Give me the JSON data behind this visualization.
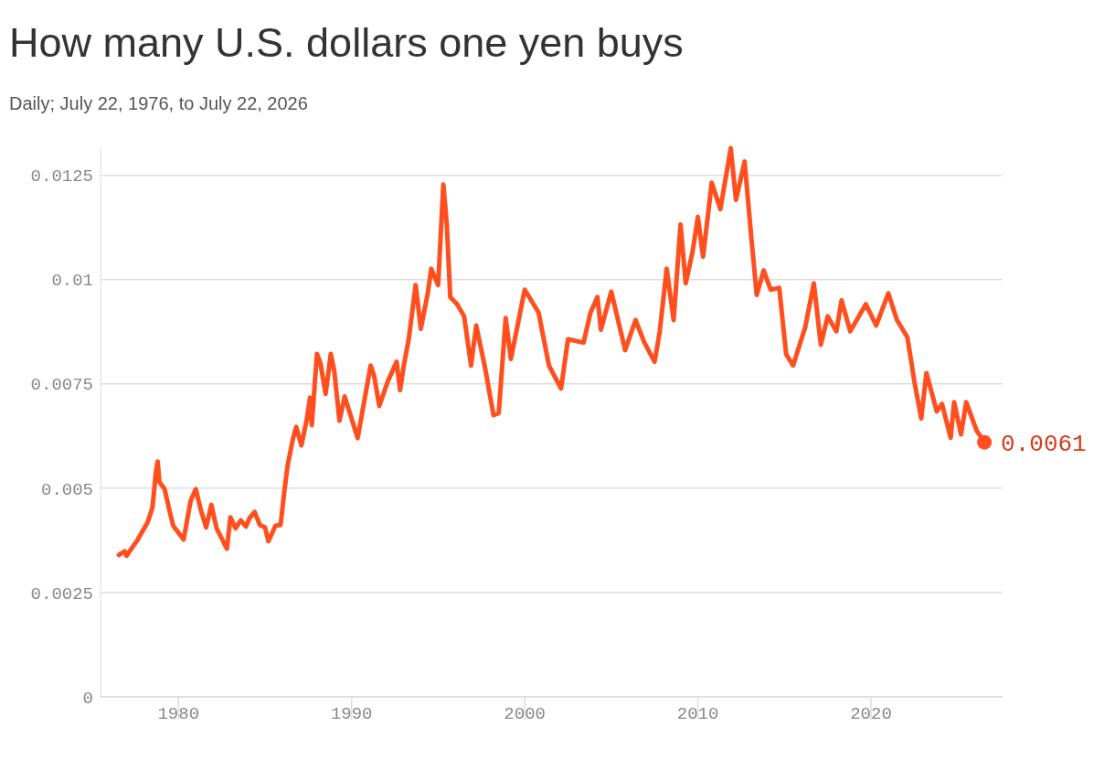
{
  "chart_data": {
    "type": "line",
    "title": "How many U.S. dollars one yen buys",
    "subtitle": "Daily; July 22, 1976, to July 22, 2026",
    "series": [
      {
        "color": "#ff4f1f",
        "x": [
          1976.56,
          1976.9,
          1977.0,
          1977.4,
          1977.6,
          1977.8,
          1978.2,
          1978.3,
          1978.5,
          1978.7,
          1978.8,
          1978.9,
          1979.2,
          1979.5,
          1979.7,
          1980.3,
          1980.7,
          1981.0,
          1981.3,
          1981.6,
          1981.9,
          1982.2,
          1982.8,
          1983.0,
          1983.3,
          1983.6,
          1983.9,
          1984.1,
          1984.4,
          1984.7,
          1985.0,
          1985.2,
          1985.6,
          1985.9,
          1986.1,
          1986.3,
          1986.6,
          1986.8,
          1987.1,
          1987.4,
          1987.6,
          1987.7,
          1988.0,
          1988.2,
          1988.5,
          1988.8,
          1989.0,
          1989.3,
          1989.6,
          1990.35,
          1991.1,
          1991.3,
          1991.6,
          1992.1,
          1992.6,
          1992.8,
          1993.0,
          1993.3,
          1993.7,
          1994.0,
          1994.4,
          1994.6,
          1995.0,
          1995.3,
          1995.5,
          1995.7,
          1996.1,
          1996.5,
          1996.9,
          1997.2,
          1997.7,
          1998.2,
          1998.5,
          1998.9,
          1999.2,
          2000.0,
          2000.8,
          2001.4,
          2002.1,
          2002.5,
          2003.4,
          2003.8,
          2004.2,
          2004.4,
          2005.0,
          2005.8,
          2006.4,
          2006.9,
          2007.5,
          2007.8,
          2008.2,
          2008.6,
          2009.0,
          2009.3,
          2009.7,
          2010.0,
          2010.3,
          2010.8,
          2011.3,
          2011.9,
          2012.2,
          2012.7,
          2013.1,
          2013.4,
          2013.8,
          2014.2,
          2014.7,
          2015.1,
          2015.5,
          2016.2,
          2016.7,
          2017.1,
          2017.5,
          2018.0,
          2018.3,
          2018.8,
          2019.7,
          2020.3,
          2021.0,
          2021.5,
          2022.1,
          2022.5,
          2022.9,
          2023.2,
          2023.8,
          2024.1,
          2024.6,
          2024.8,
          2025.2,
          2025.5,
          2026.1,
          2026.55
        ],
        "values": [
          0.0034,
          0.00349,
          0.00338,
          0.00362,
          0.00373,
          0.00388,
          0.00417,
          0.00428,
          0.00454,
          0.00539,
          0.00564,
          0.00515,
          0.00498,
          0.00443,
          0.0041,
          0.00377,
          0.00469,
          0.00498,
          0.00447,
          0.00406,
          0.0046,
          0.00404,
          0.00355,
          0.0043,
          0.00404,
          0.00423,
          0.00408,
          0.00428,
          0.00443,
          0.00412,
          0.00406,
          0.00373,
          0.0041,
          0.00412,
          0.00487,
          0.00553,
          0.00616,
          0.00647,
          0.00603,
          0.00662,
          0.00717,
          0.00651,
          0.00822,
          0.008,
          0.00726,
          0.00822,
          0.00781,
          0.00662,
          0.0072,
          0.0062,
          0.00794,
          0.0077,
          0.00697,
          0.00757,
          0.00803,
          0.00735,
          0.0079,
          0.00857,
          0.00987,
          0.00882,
          0.00967,
          0.01026,
          0.00987,
          0.01228,
          0.01132,
          0.00958,
          0.00941,
          0.00912,
          0.00794,
          0.0089,
          0.0079,
          0.00675,
          0.0068,
          0.00908,
          0.0081,
          0.00976,
          0.00921,
          0.00794,
          0.00739,
          0.00857,
          0.00849,
          0.00921,
          0.00958,
          0.0088,
          0.00971,
          0.00831,
          0.00903,
          0.0085,
          0.00803,
          0.00876,
          0.01026,
          0.00903,
          0.01132,
          0.00991,
          0.01068,
          0.0115,
          0.01055,
          0.01232,
          0.01169,
          0.01315,
          0.01191,
          0.01283,
          0.01095,
          0.00963,
          0.01022,
          0.00976,
          0.0098,
          0.00821,
          0.00794,
          0.00886,
          0.00991,
          0.00844,
          0.00912,
          0.00876,
          0.0095,
          0.00876,
          0.00941,
          0.0089,
          0.00967,
          0.00903,
          0.00862,
          0.00757,
          0.00667,
          0.00776,
          0.00684,
          0.00702,
          0.00621,
          0.00706,
          0.00629,
          0.00706,
          0.00638,
          0.0061
        ]
      }
    ],
    "xlim": [
      1975.5,
      2027.6
    ],
    "xticks": [
      1980,
      1990,
      2000,
      2010,
      2020
    ],
    "ylim": [
      0,
      0.01315
    ],
    "yticks": [
      0,
      0.0025,
      0.005,
      0.0075,
      0.01,
      0.0125
    ],
    "grid": "y",
    "annotations": [
      {
        "text": "0.0061",
        "x": 2026.55,
        "y": 0.0061
      }
    ]
  }
}
